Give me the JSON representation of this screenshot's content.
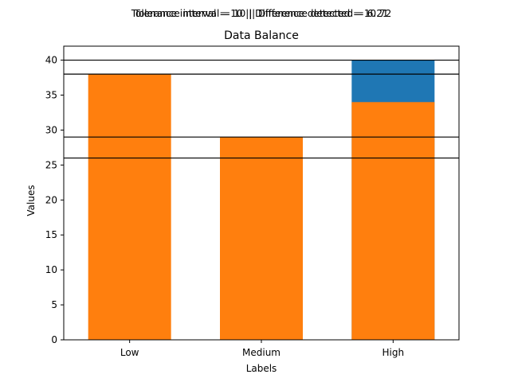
{
  "suptitle_lines": [
    "Tolerance interval = 10 || Difference detected = 6.21",
    "Tolerance interval = 10 || Difference detected = 10.72"
  ],
  "chart_data": {
    "type": "bar",
    "title": "Data Balance",
    "xlabel": "Labels",
    "ylabel": "Values",
    "categories": [
      "Low",
      "Medium",
      "High"
    ],
    "series": [
      {
        "color": "#1f77b4",
        "values": [
          0,
          0,
          40
        ]
      },
      {
        "color": "#ff7f0e",
        "values": [
          38,
          29,
          34
        ]
      }
    ],
    "ylim": [
      0,
      42
    ],
    "yticks": [
      0,
      5,
      10,
      15,
      20,
      25,
      30,
      35,
      40
    ],
    "hlines": [
      40,
      38,
      29,
      26
    ],
    "hline_color": "#000000",
    "grid": false
  }
}
